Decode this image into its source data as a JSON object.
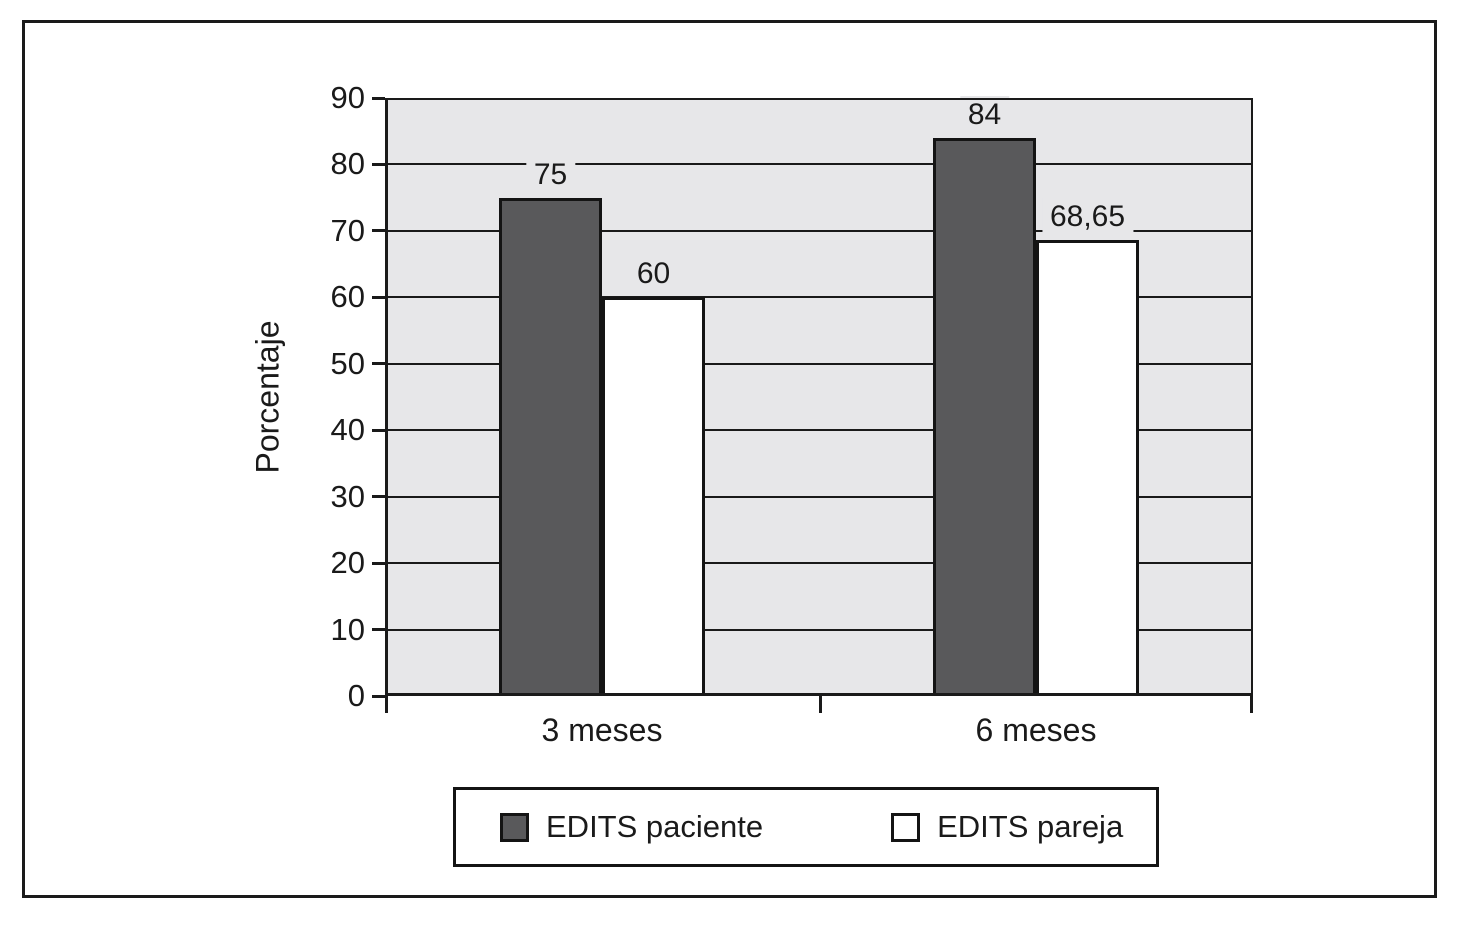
{
  "figure": {
    "ylabel": "Porcentaje",
    "plot_background": "#e7e7e9",
    "line_color": "#1a1a1a",
    "frame_color": "#1a1a1a"
  },
  "chart_data": {
    "type": "bar",
    "categories": [
      "3 meses",
      "6 meses"
    ],
    "series": [
      {
        "name": "EDITS paciente",
        "color": "#59595b",
        "values": [
          75,
          84
        ],
        "labels": [
          "75",
          "84"
        ]
      },
      {
        "name": "EDITS pareja",
        "color": "#ffffff",
        "values": [
          60,
          68.65
        ],
        "labels": [
          "60",
          "68,65"
        ]
      }
    ],
    "title": "",
    "xlabel": "",
    "ylabel": "Porcentaje",
    "ylim": [
      0,
      90
    ],
    "yticks": [
      0,
      10,
      20,
      30,
      40,
      50,
      60,
      70,
      80,
      90
    ],
    "grid": true,
    "grid_axis": "y",
    "legend_position": "bottom"
  }
}
